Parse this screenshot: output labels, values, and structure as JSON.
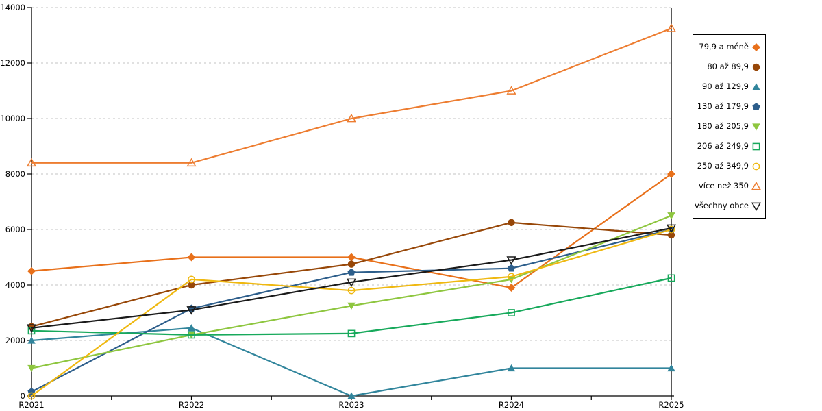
{
  "chart_data": {
    "type": "line",
    "title": "",
    "xlabel": "",
    "ylabel": "",
    "x_categories": [
      "R2021",
      "R2022",
      "R2023",
      "R2024",
      "R2025"
    ],
    "y_axis": {
      "min": 0,
      "max": 14000,
      "step": 2000
    },
    "y_tick_labels": [
      "0",
      "2000",
      "4000",
      "6000",
      "8000",
      "10000",
      "12000",
      "14000"
    ],
    "grid": "horizontal-dashed",
    "legend_position": "right",
    "series": [
      {
        "name": "79,9 a méně",
        "color": "#E8701A",
        "marker": "diamond",
        "filled": true,
        "values": [
          4500,
          5000,
          5000,
          3900,
          8000
        ]
      },
      {
        "name": "80 až 89,9",
        "color": "#974708",
        "marker": "circle",
        "filled": true,
        "values": [
          2500,
          4000,
          4750,
          6250,
          5800
        ]
      },
      {
        "name": "90 až 129,9",
        "color": "#31859C",
        "marker": "triangle-up",
        "filled": true,
        "values": [
          2000,
          2450,
          0,
          1000,
          1000
        ]
      },
      {
        "name": "130 až 179,9",
        "color": "#2D5E8B",
        "marker": "pentagon",
        "filled": true,
        "values": [
          150,
          3150,
          4450,
          4600,
          6000
        ]
      },
      {
        "name": "180 až 205,9",
        "color": "#8EC63F",
        "marker": "triangle-down",
        "filled": true,
        "values": [
          1000,
          2200,
          3250,
          4200,
          6500
        ]
      },
      {
        "name": "206 až 249,9",
        "color": "#17A95B",
        "marker": "square",
        "filled": false,
        "values": [
          2350,
          2200,
          2250,
          3000,
          4250
        ]
      },
      {
        "name": "250 až 349,9",
        "color": "#EFB810",
        "marker": "circle",
        "filled": false,
        "values": [
          0,
          4200,
          3800,
          4300,
          6000
        ]
      },
      {
        "name": "více než 350",
        "color": "#ED7D31",
        "marker": "triangle-up",
        "filled": false,
        "values": [
          8400,
          8400,
          10000,
          11000,
          13250
        ]
      },
      {
        "name": "všechny obce",
        "color": "#1A1A1A",
        "marker": "triangle-down",
        "filled": false,
        "values": [
          2450,
          3100,
          4100,
          4900,
          6050
        ]
      }
    ]
  },
  "style": {
    "grid_color": "#C3C3C3",
    "axis_color": "#000000",
    "background": "#FFFFFF",
    "tick_label_color": "#000000"
  }
}
